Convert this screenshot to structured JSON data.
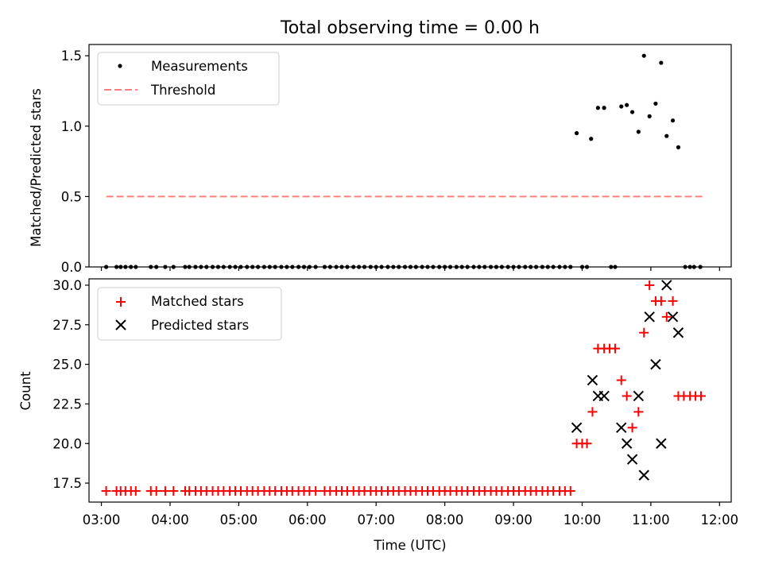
{
  "title": "Total observing time = 0.00 h",
  "chart_data": [
    {
      "type": "scatter",
      "ylabel": "Matched/Predicted stars",
      "ylim": [
        0,
        1.58
      ],
      "yticks": [
        0.0,
        0.5,
        1.0,
        1.5
      ],
      "ytick_labels": [
        "0.0",
        "0.5",
        "1.0",
        "1.5"
      ],
      "x_unit": "time of day (UTC, hours)",
      "xlim": [
        2.82,
        12.17
      ],
      "legend_position": "upper left",
      "series": [
        {
          "name": "Measurements",
          "marker": "dot",
          "color": "#000000",
          "points": [
            [
              3.07,
              0
            ],
            [
              3.22,
              0
            ],
            [
              3.28,
              0
            ],
            [
              3.35,
              0
            ],
            [
              3.43,
              0
            ],
            [
              3.5,
              0
            ],
            [
              3.72,
              0
            ],
            [
              3.8,
              0
            ],
            [
              3.93,
              0
            ],
            [
              4.05,
              0
            ],
            [
              4.22,
              0
            ],
            [
              4.28,
              0
            ],
            [
              4.37,
              0
            ],
            [
              4.45,
              0
            ],
            [
              4.53,
              0
            ],
            [
              4.62,
              0
            ],
            [
              4.7,
              0
            ],
            [
              4.78,
              0
            ],
            [
              4.87,
              0
            ],
            [
              4.95,
              0
            ],
            [
              5.03,
              0
            ],
            [
              5.12,
              0
            ],
            [
              5.2,
              0
            ],
            [
              5.28,
              0
            ],
            [
              5.37,
              0
            ],
            [
              5.45,
              0
            ],
            [
              5.53,
              0
            ],
            [
              5.62,
              0
            ],
            [
              5.7,
              0
            ],
            [
              5.78,
              0
            ],
            [
              5.87,
              0
            ],
            [
              5.95,
              0
            ],
            [
              6.03,
              0
            ],
            [
              6.12,
              0
            ],
            [
              6.25,
              0
            ],
            [
              6.33,
              0
            ],
            [
              6.42,
              0
            ],
            [
              6.5,
              0
            ],
            [
              6.58,
              0
            ],
            [
              6.67,
              0
            ],
            [
              6.75,
              0
            ],
            [
              6.83,
              0
            ],
            [
              6.92,
              0
            ],
            [
              7.0,
              0
            ],
            [
              7.08,
              0
            ],
            [
              7.17,
              0
            ],
            [
              7.25,
              0
            ],
            [
              7.33,
              0
            ],
            [
              7.42,
              0
            ],
            [
              7.5,
              0
            ],
            [
              7.58,
              0
            ],
            [
              7.67,
              0
            ],
            [
              7.75,
              0
            ],
            [
              7.83,
              0
            ],
            [
              7.92,
              0
            ],
            [
              8.0,
              0
            ],
            [
              8.08,
              0
            ],
            [
              8.17,
              0
            ],
            [
              8.25,
              0
            ],
            [
              8.33,
              0
            ],
            [
              8.42,
              0
            ],
            [
              8.5,
              0
            ],
            [
              8.58,
              0
            ],
            [
              8.67,
              0
            ],
            [
              8.75,
              0
            ],
            [
              8.83,
              0
            ],
            [
              8.92,
              0
            ],
            [
              9.0,
              0
            ],
            [
              9.08,
              0
            ],
            [
              9.17,
              0
            ],
            [
              9.25,
              0
            ],
            [
              9.33,
              0
            ],
            [
              9.42,
              0
            ],
            [
              9.5,
              0
            ],
            [
              9.58,
              0
            ],
            [
              9.67,
              0
            ],
            [
              9.75,
              0
            ],
            [
              9.83,
              0
            ],
            [
              10.0,
              0
            ],
            [
              10.07,
              0
            ],
            [
              10.42,
              0
            ],
            [
              10.48,
              0
            ],
            [
              11.5,
              0
            ],
            [
              11.57,
              0
            ],
            [
              11.63,
              0
            ],
            [
              11.72,
              0
            ],
            [
              9.92,
              0.95
            ],
            [
              10.13,
              0.91
            ],
            [
              10.23,
              1.13
            ],
            [
              10.32,
              1.13
            ],
            [
              10.57,
              1.14
            ],
            [
              10.65,
              1.15
            ],
            [
              10.73,
              1.1
            ],
            [
              10.82,
              0.96
            ],
            [
              10.9,
              1.5
            ],
            [
              10.98,
              1.07
            ],
            [
              11.07,
              1.16
            ],
            [
              11.15,
              1.45
            ],
            [
              11.23,
              0.93
            ],
            [
              11.32,
              1.04
            ],
            [
              11.4,
              0.85
            ]
          ]
        },
        {
          "name": "Threshold",
          "marker": "dashed-line",
          "color": "#ff7f7f",
          "points": [
            [
              3.07,
              0.5
            ],
            [
              11.75,
              0.5
            ]
          ]
        }
      ]
    },
    {
      "type": "scatter",
      "ylabel": "Count",
      "xlabel": "Time (UTC)",
      "ylim": [
        16.3,
        30.4
      ],
      "yticks": [
        17.5,
        20.0,
        22.5,
        25.0,
        27.5,
        30.0
      ],
      "ytick_labels": [
        "17.5",
        "20.0",
        "22.5",
        "25.0",
        "27.5",
        "30.0"
      ],
      "x_unit": "time of day (UTC, hours)",
      "xlim": [
        2.82,
        12.17
      ],
      "xticks": [
        3,
        4,
        5,
        6,
        7,
        8,
        9,
        10,
        11,
        12
      ],
      "xtick_labels": [
        "03:00",
        "04:00",
        "05:00",
        "06:00",
        "07:00",
        "08:00",
        "09:00",
        "10:00",
        "11:00",
        "12:00"
      ],
      "legend_position": "upper left",
      "series": [
        {
          "name": "Matched stars",
          "marker": "plus",
          "color": "#ff0000",
          "points": [
            [
              3.07,
              17
            ],
            [
              3.22,
              17
            ],
            [
              3.28,
              17
            ],
            [
              3.35,
              17
            ],
            [
              3.43,
              17
            ],
            [
              3.5,
              17
            ],
            [
              3.72,
              17
            ],
            [
              3.8,
              17
            ],
            [
              3.93,
              17
            ],
            [
              4.05,
              17
            ],
            [
              4.22,
              17
            ],
            [
              4.28,
              17
            ],
            [
              4.37,
              17
            ],
            [
              4.45,
              17
            ],
            [
              4.53,
              17
            ],
            [
              4.62,
              17
            ],
            [
              4.7,
              17
            ],
            [
              4.78,
              17
            ],
            [
              4.87,
              17
            ],
            [
              4.95,
              17
            ],
            [
              5.03,
              17
            ],
            [
              5.12,
              17
            ],
            [
              5.2,
              17
            ],
            [
              5.28,
              17
            ],
            [
              5.37,
              17
            ],
            [
              5.45,
              17
            ],
            [
              5.53,
              17
            ],
            [
              5.62,
              17
            ],
            [
              5.7,
              17
            ],
            [
              5.78,
              17
            ],
            [
              5.87,
              17
            ],
            [
              5.95,
              17
            ],
            [
              6.03,
              17
            ],
            [
              6.12,
              17
            ],
            [
              6.25,
              17
            ],
            [
              6.33,
              17
            ],
            [
              6.42,
              17
            ],
            [
              6.5,
              17
            ],
            [
              6.58,
              17
            ],
            [
              6.67,
              17
            ],
            [
              6.75,
              17
            ],
            [
              6.83,
              17
            ],
            [
              6.92,
              17
            ],
            [
              7.0,
              17
            ],
            [
              7.08,
              17
            ],
            [
              7.17,
              17
            ],
            [
              7.25,
              17
            ],
            [
              7.33,
              17
            ],
            [
              7.42,
              17
            ],
            [
              7.5,
              17
            ],
            [
              7.58,
              17
            ],
            [
              7.67,
              17
            ],
            [
              7.75,
              17
            ],
            [
              7.83,
              17
            ],
            [
              7.92,
              17
            ],
            [
              8.0,
              17
            ],
            [
              8.08,
              17
            ],
            [
              8.17,
              17
            ],
            [
              8.25,
              17
            ],
            [
              8.33,
              17
            ],
            [
              8.42,
              17
            ],
            [
              8.5,
              17
            ],
            [
              8.58,
              17
            ],
            [
              8.67,
              17
            ],
            [
              8.75,
              17
            ],
            [
              8.83,
              17
            ],
            [
              8.92,
              17
            ],
            [
              9.0,
              17
            ],
            [
              9.08,
              17
            ],
            [
              9.17,
              17
            ],
            [
              9.25,
              17
            ],
            [
              9.33,
              17
            ],
            [
              9.42,
              17
            ],
            [
              9.5,
              17
            ],
            [
              9.58,
              17
            ],
            [
              9.67,
              17
            ],
            [
              9.75,
              17
            ],
            [
              9.83,
              17
            ],
            [
              9.92,
              20
            ],
            [
              10.0,
              20
            ],
            [
              10.07,
              20
            ],
            [
              10.15,
              22
            ],
            [
              10.23,
              26
            ],
            [
              10.32,
              26
            ],
            [
              10.4,
              26
            ],
            [
              10.48,
              26
            ],
            [
              10.57,
              24
            ],
            [
              10.65,
              23
            ],
            [
              10.73,
              21
            ],
            [
              10.82,
              22
            ],
            [
              10.9,
              27
            ],
            [
              10.98,
              30
            ],
            [
              11.07,
              29
            ],
            [
              11.15,
              29
            ],
            [
              11.23,
              28
            ],
            [
              11.32,
              29
            ],
            [
              11.4,
              23
            ],
            [
              11.48,
              23
            ],
            [
              11.57,
              23
            ],
            [
              11.65,
              23
            ],
            [
              11.73,
              23
            ]
          ]
        },
        {
          "name": "Predicted stars",
          "marker": "x",
          "color": "#000000",
          "points": [
            [
              9.92,
              21
            ],
            [
              10.15,
              24
            ],
            [
              10.23,
              23
            ],
            [
              10.32,
              23
            ],
            [
              10.57,
              21
            ],
            [
              10.65,
              20
            ],
            [
              10.73,
              19
            ],
            [
              10.82,
              23
            ],
            [
              10.9,
              18
            ],
            [
              10.98,
              28
            ],
            [
              11.07,
              25
            ],
            [
              11.15,
              20
            ],
            [
              11.23,
              30
            ],
            [
              11.32,
              28
            ],
            [
              11.4,
              27
            ]
          ]
        }
      ]
    }
  ]
}
